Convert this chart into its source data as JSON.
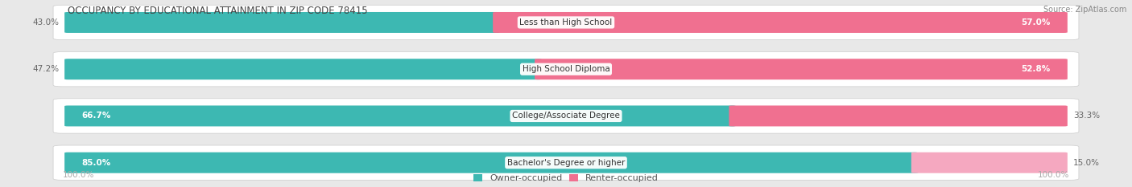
{
  "title": "OCCUPANCY BY EDUCATIONAL ATTAINMENT IN ZIP CODE 78415",
  "source": "Source: ZipAtlas.com",
  "categories": [
    "Less than High School",
    "High School Diploma",
    "College/Associate Degree",
    "Bachelor's Degree or higher"
  ],
  "owner_pct": [
    43.0,
    47.2,
    66.7,
    85.0
  ],
  "renter_pct": [
    57.0,
    52.8,
    33.3,
    15.0
  ],
  "owner_color": "#3db8b2",
  "renter_color_strong": "#f07090",
  "renter_color_medium": "#f07090",
  "renter_color_light": "#f5a8c0",
  "bg_color": "#e8e8e8",
  "row_bg_color": "#f5f5f5",
  "title_color": "#555555",
  "axis_label_color": "#aaaaaa",
  "legend_owner": "Owner-occupied",
  "legend_renter": "Renter-occupied",
  "bar_height": 0.62,
  "figsize": [
    14.06,
    2.33
  ],
  "dpi": 100
}
